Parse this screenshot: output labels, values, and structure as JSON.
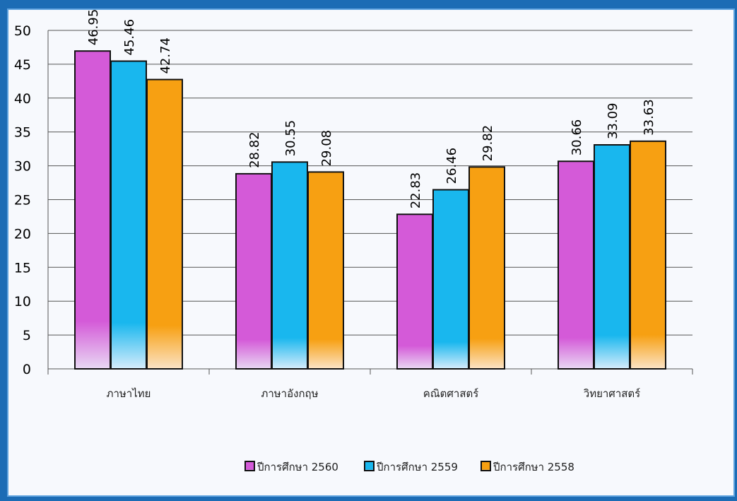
{
  "chart_data": {
    "type": "bar",
    "categories": [
      "ภาษาไทย",
      "ภาษาอังกฤษ",
      "คณิตศาสตร์",
      "วิทยาศาสตร์"
    ],
    "series": [
      {
        "name": "ปีการศึกษา 2560",
        "values": [
          46.95,
          28.82,
          22.83,
          30.66
        ],
        "color": "#d45ad8"
      },
      {
        "name": "ปีการศึกษา 2559",
        "values": [
          45.46,
          30.55,
          26.46,
          33.09
        ],
        "color": "#19b7ee"
      },
      {
        "name": "ปีการศึกษา 2558",
        "values": [
          42.74,
          29.08,
          29.82,
          33.63
        ],
        "color": "#f7a012"
      }
    ],
    "data_labels": [
      [
        "46.95",
        "45.46",
        "42.74"
      ],
      [
        "28.82",
        "30.55",
        "29.08"
      ],
      [
        "22.83",
        "26.46",
        "29.82"
      ],
      [
        "30.66",
        "33.09",
        "33.63"
      ]
    ],
    "yticks": [
      "0",
      "5",
      "10",
      "15",
      "20",
      "25",
      "30",
      "35",
      "40",
      "45",
      "50"
    ],
    "ylim": [
      0,
      50
    ],
    "grid": true,
    "legend": "bottom",
    "title": "",
    "xlabel": "",
    "ylabel": ""
  }
}
